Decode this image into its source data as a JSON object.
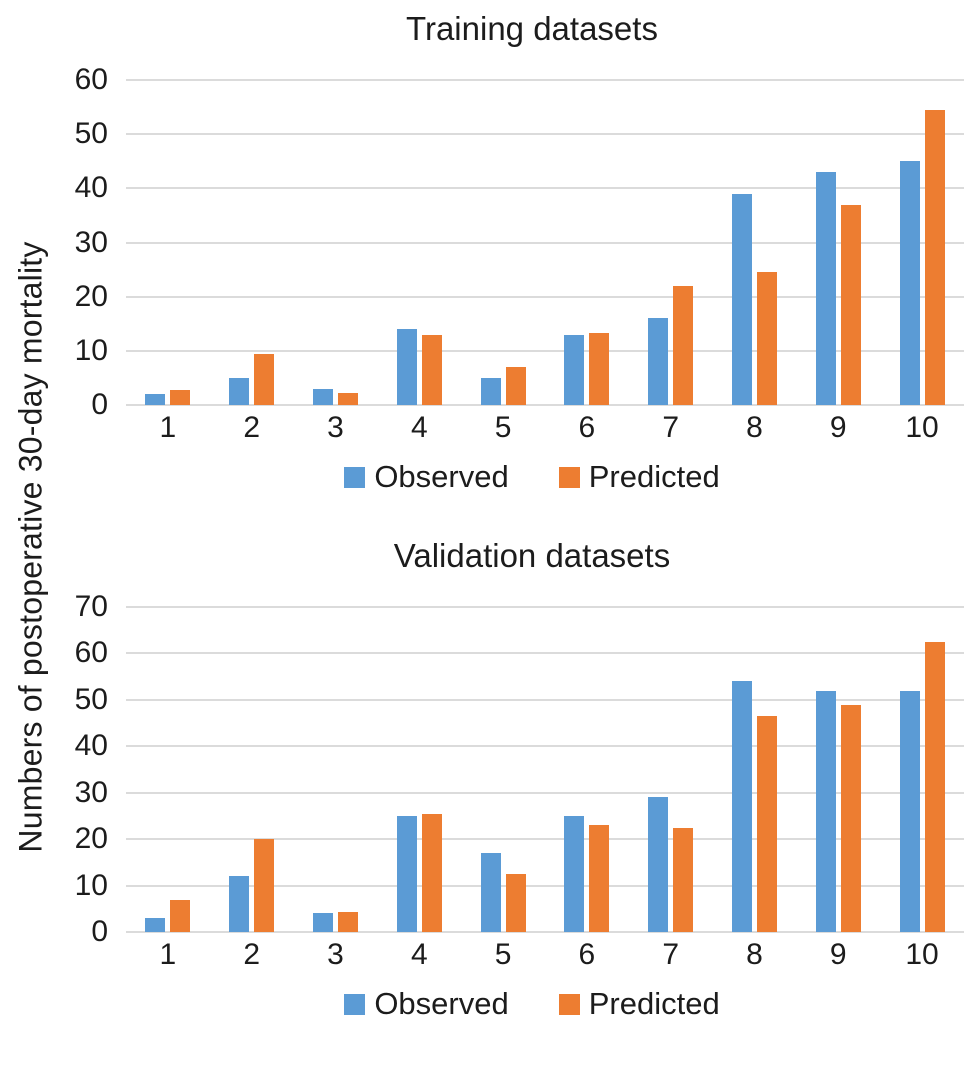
{
  "figure": {
    "shared_y_label": "Numbers of postoperative 30-day mortality"
  },
  "colors": {
    "observed": "#5B9BD5",
    "predicted": "#ED7D31",
    "gridline": "#DBDBDB",
    "text": "#1C1C1C"
  },
  "chart_data": [
    {
      "type": "bar",
      "title": "Training datasets",
      "categories": [
        "1",
        "2",
        "3",
        "4",
        "5",
        "6",
        "7",
        "8",
        "9",
        "10"
      ],
      "series": [
        {
          "name": "Observed",
          "color": "#5B9BD5",
          "values": [
            2,
            5,
            3,
            14,
            5,
            13,
            16,
            39,
            43,
            45
          ]
        },
        {
          "name": "Predicted",
          "color": "#ED7D31",
          "values": [
            2.8,
            9.5,
            2.3,
            13,
            7,
            13.3,
            22,
            24.5,
            37,
            54.5
          ]
        }
      ],
      "xlabel": "",
      "ylabel": "Numbers of postoperative 30-day mortality",
      "ylim": [
        0,
        60
      ],
      "ytick_step": 10,
      "grid": true,
      "legend": [
        "Observed",
        "Predicted"
      ],
      "legend_position": "bottom"
    },
    {
      "type": "bar",
      "title": "Validation datasets",
      "categories": [
        "1",
        "2",
        "3",
        "4",
        "5",
        "6",
        "7",
        "8",
        "9",
        "10"
      ],
      "series": [
        {
          "name": "Observed",
          "color": "#5B9BD5",
          "values": [
            3,
            12,
            4,
            25,
            17,
            25,
            29,
            54,
            52,
            52
          ]
        },
        {
          "name": "Predicted",
          "color": "#ED7D31",
          "values": [
            7,
            20,
            4.3,
            25.5,
            12.5,
            23,
            22.5,
            46.5,
            49,
            62.5
          ]
        }
      ],
      "xlabel": "",
      "ylabel": "Numbers of postoperative 30-day mortality",
      "ylim": [
        0,
        70
      ],
      "ytick_step": 10,
      "grid": true,
      "legend": [
        "Observed",
        "Predicted"
      ],
      "legend_position": "bottom"
    }
  ]
}
